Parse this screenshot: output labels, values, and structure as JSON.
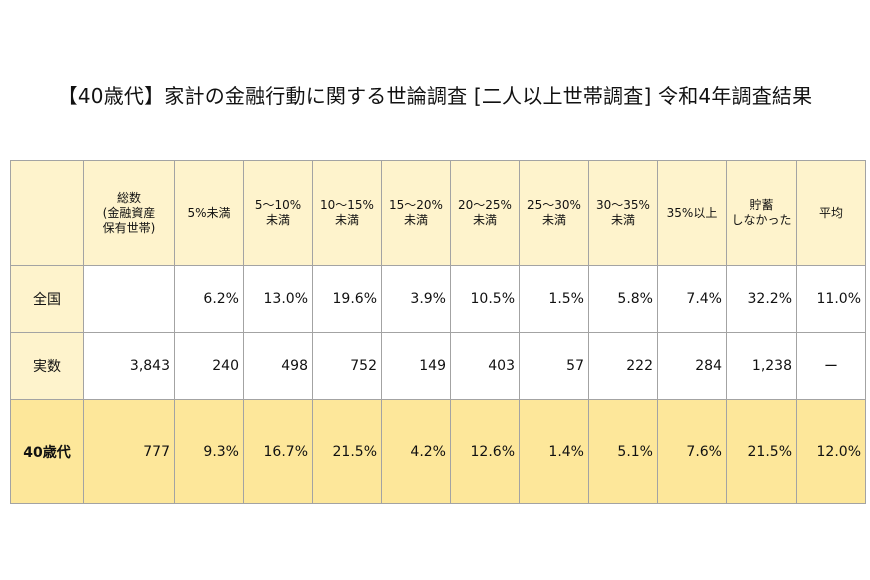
{
  "title": "【40歳代】家計の金融行動に関する世論調査 [二人以上世帯調査]  令和4年調査結果",
  "table": {
    "headers": [
      "",
      "総数\n(金融資産\n保有世帯)",
      "5%未満",
      "5〜10%\n未満",
      "10〜15%\n未満",
      "15〜20%\n未満",
      "20〜25%\n未満",
      "25〜30%\n未満",
      "30〜35%\n未満",
      "35%以上",
      "貯蓄\nしなかった",
      "平均"
    ],
    "rows": [
      {
        "label": "全国",
        "cells": [
          "",
          "6.2%",
          "13.0%",
          "19.6%",
          "3.9%",
          "10.5%",
          "1.5%",
          "5.8%",
          "7.4%",
          "32.2%",
          "11.0%"
        ]
      },
      {
        "label": "実数",
        "cells": [
          "3,843",
          "240",
          "498",
          "752",
          "149",
          "403",
          "57",
          "222",
          "284",
          "1,238",
          "ー"
        ]
      },
      {
        "label": "40歳代",
        "cells": [
          "777",
          "9.3%",
          "16.7%",
          "21.5%",
          "4.2%",
          "12.6%",
          "1.4%",
          "5.1%",
          "7.6%",
          "21.5%",
          "12.0%"
        ]
      }
    ]
  },
  "colors": {
    "header_bg": "#fef3cc",
    "highlight_row_bg": "#fde79a",
    "border": "#a3a3a3"
  }
}
